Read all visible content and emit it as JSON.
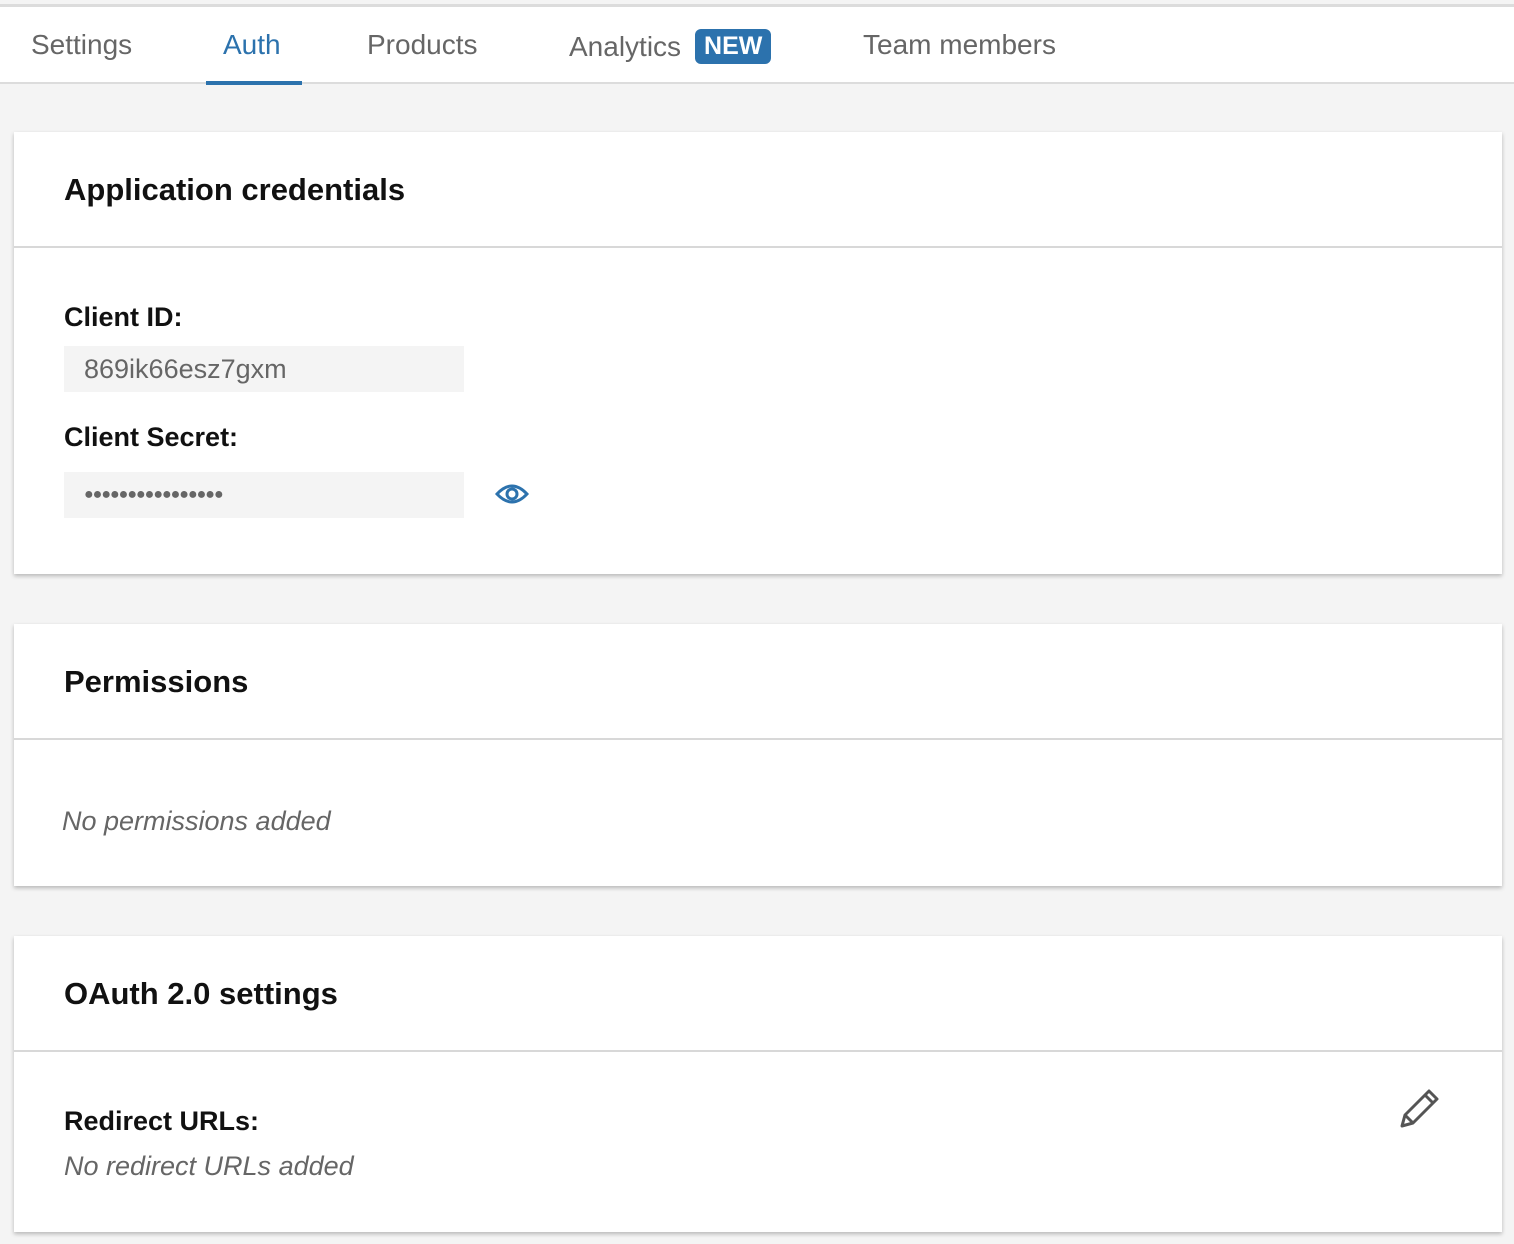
{
  "tabs": [
    {
      "label": "Settings"
    },
    {
      "label": "Auth",
      "active": true
    },
    {
      "label": "Products"
    },
    {
      "label": "Analytics",
      "badge": "NEW"
    },
    {
      "label": "Team members"
    }
  ],
  "accent": "#2c72ad",
  "credentials": {
    "title": "Application credentials",
    "client_id_label": "Client ID:",
    "client_id": "869ik66esz7gxm",
    "client_secret_label": "Client Secret:",
    "client_secret": "●●●●●●●●●●●●●●●●",
    "reveal_icon": "eye-icon"
  },
  "permissions": {
    "title": "Permissions",
    "empty": "No permissions added"
  },
  "oauth": {
    "title": "OAuth 2.0 settings",
    "redirect_label": "Redirect URLs:",
    "redirect_empty": "No redirect URLs added",
    "edit_icon": "pencil-icon"
  }
}
